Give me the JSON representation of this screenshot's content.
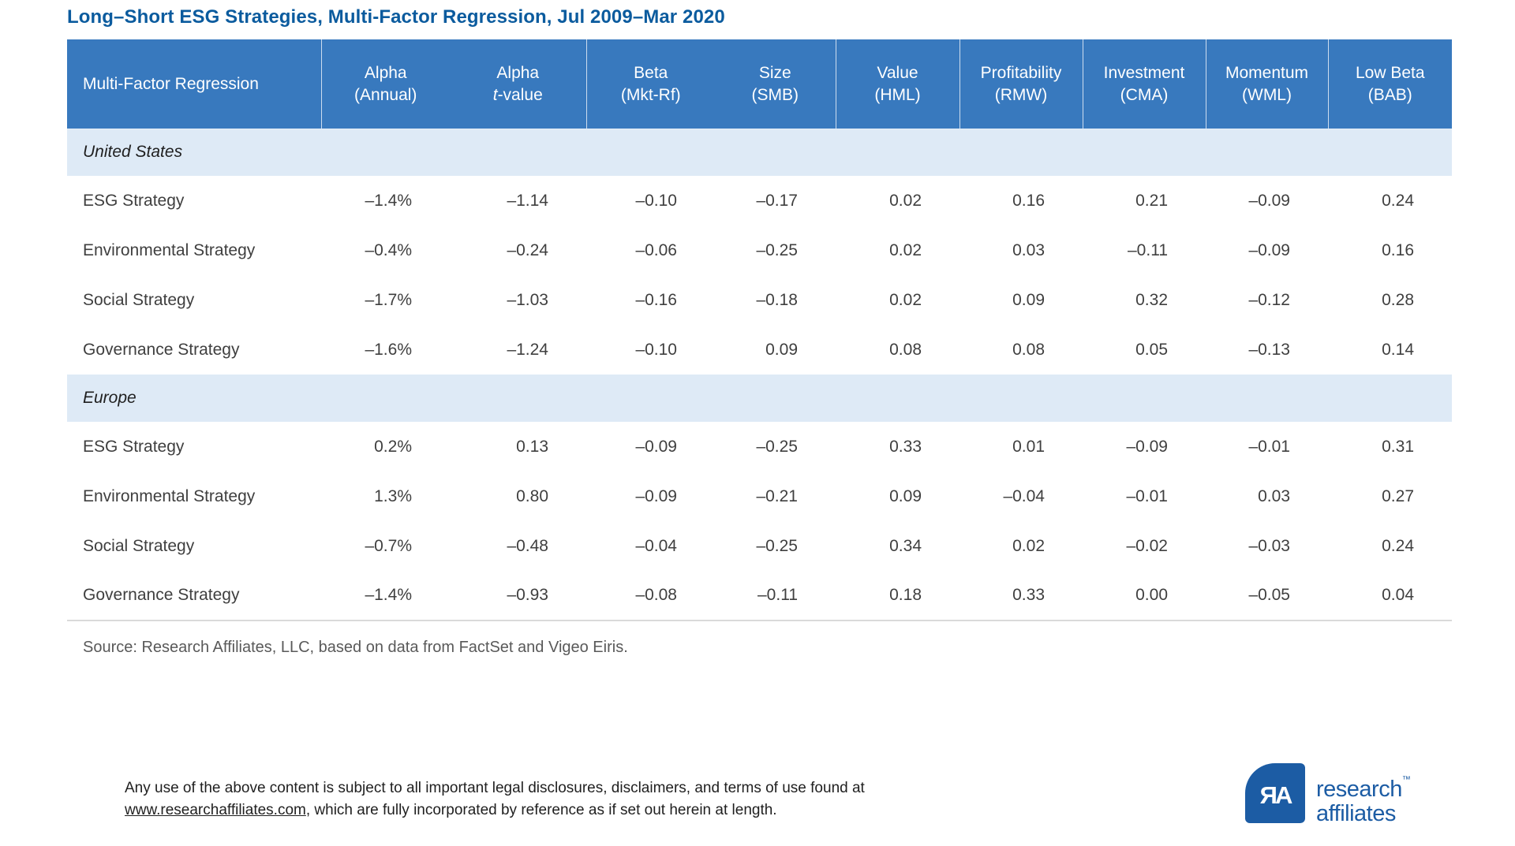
{
  "title": "Long–Short ESG Strategies, Multi-Factor Regression, Jul 2009–Mar 2020",
  "chart_data": {
    "type": "table",
    "title": "Long–Short ESG Strategies, Multi-Factor Regression, Jul 2009–Mar 2020",
    "columns": [
      {
        "id": "strategy",
        "top": "Multi-Factor Regression",
        "bottom": "",
        "divider": false
      },
      {
        "id": "alpha-annual",
        "top": "Alpha",
        "bottom": "(Annual)",
        "divider": true
      },
      {
        "id": "alpha-t-value",
        "top": "Alpha",
        "bottom": "t-value",
        "divider": false,
        "italic_t": true
      },
      {
        "id": "beta",
        "top": "Beta",
        "bottom": "(Mkt-Rf)",
        "divider": true
      },
      {
        "id": "size",
        "top": "Size",
        "bottom": "(SMB)",
        "divider": false
      },
      {
        "id": "value",
        "top": "Value",
        "bottom": "(HML)",
        "divider": true
      },
      {
        "id": "profitability",
        "top": "Profitability",
        "bottom": "(RMW)",
        "divider": true
      },
      {
        "id": "investment",
        "top": "Investment",
        "bottom": "(CMA)",
        "divider": true
      },
      {
        "id": "momentum",
        "top": "Momentum",
        "bottom": "(WML)",
        "divider": true
      },
      {
        "id": "low-beta",
        "top": "Low Beta",
        "bottom": "(BAB)",
        "divider": true
      }
    ],
    "sections": [
      {
        "name": "United States",
        "rows": [
          {
            "label": "ESG Strategy",
            "values": [
              "–1.4%",
              "–1.14",
              "–0.10",
              "–0.17",
              "0.02",
              "0.16",
              "0.21",
              "–0.09",
              "0.24"
            ]
          },
          {
            "label": "Environmental Strategy",
            "values": [
              "–0.4%",
              "–0.24",
              "–0.06",
              "–0.25",
              "0.02",
              "0.03",
              "–0.11",
              "–0.09",
              "0.16"
            ]
          },
          {
            "label": "Social Strategy",
            "values": [
              "–1.7%",
              "–1.03",
              "–0.16",
              "–0.18",
              "0.02",
              "0.09",
              "0.32",
              "–0.12",
              "0.28"
            ]
          },
          {
            "label": "Governance Strategy",
            "values": [
              "–1.6%",
              "–1.24",
              "–0.10",
              "0.09",
              "0.08",
              "0.08",
              "0.05",
              "–0.13",
              "0.14"
            ]
          }
        ]
      },
      {
        "name": "Europe",
        "rows": [
          {
            "label": "ESG Strategy",
            "values": [
              "0.2%",
              "0.13",
              "–0.09",
              "–0.25",
              "0.33",
              "0.01",
              "–0.09",
              "–0.01",
              "0.31"
            ]
          },
          {
            "label": "Environmental Strategy",
            "values": [
              "1.3%",
              "0.80",
              "–0.09",
              "–0.21",
              "0.09",
              "–0.04",
              "–0.01",
              "0.03",
              "0.27"
            ]
          },
          {
            "label": "Social Strategy",
            "values": [
              "–0.7%",
              "–0.48",
              "–0.04",
              "–0.25",
              "0.34",
              "0.02",
              "–0.02",
              "–0.03",
              "0.24"
            ]
          },
          {
            "label": "Governance Strategy",
            "values": [
              "–1.4%",
              "–0.93",
              "–0.08",
              "–0.11",
              "0.18",
              "0.33",
              "0.00",
              "–0.05",
              "0.04"
            ]
          }
        ]
      }
    ]
  },
  "source": "Source: Research Affiliates, LLC, based on data from FactSet and Vigeo Eiris.",
  "footer": {
    "line1": "Any use of the above content is subject to all important legal disclosures, disclaimers, and terms of use found at",
    "link": "www.researchaffiliates.com",
    "line2_after_link": ", which are fully incorporated by reference as if set out herein at length."
  },
  "logo": {
    "monogram": "ЯA",
    "word1": "research",
    "trademark": "™",
    "word2": "affiliates"
  },
  "colors": {
    "header_bg": "#3879be",
    "band_bg": "#deeaf6",
    "title_blue": "#0b5b9e",
    "logo_blue": "#1c5ca4",
    "body_text": "#3f3f3f",
    "source_text": "#595959"
  }
}
